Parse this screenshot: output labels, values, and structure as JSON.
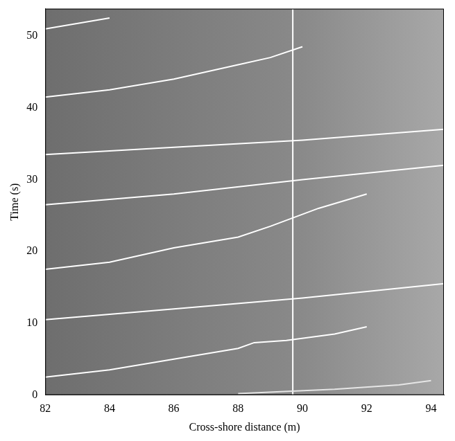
{
  "chart_data": {
    "type": "line",
    "x_label": "Cross-shore distance (m)",
    "y_label": "Time (s)",
    "xlim": [
      82,
      94.4
    ],
    "xticks": [
      82,
      84,
      86,
      88,
      90,
      92,
      94
    ],
    "ylim": [
      0,
      53.8
    ],
    "yticks": [
      0,
      10,
      20,
      30,
      40,
      50
    ],
    "grid": false,
    "marker": "none",
    "line_style": "solid",
    "series": [
      {
        "x": [
          88,
          91,
          93,
          94
        ],
        "values": [
          0.2,
          0.8,
          1.4,
          2.0
        ],
        "color": "#e6e6e6"
      },
      {
        "x": [
          82,
          84,
          86,
          88,
          88.5,
          89.5,
          91,
          92
        ],
        "values": [
          2.5,
          3.5,
          5,
          6.5,
          7.3,
          7.6,
          8.5,
          9.5
        ],
        "color": "#ffffff"
      },
      {
        "x": [
          82,
          86,
          90,
          94.4
        ],
        "values": [
          10.5,
          12,
          13.5,
          15.5
        ],
        "color": "#ffffff"
      },
      {
        "x": [
          82,
          84,
          86,
          88,
          89,
          90.5,
          92
        ],
        "values": [
          17.5,
          18.5,
          20.5,
          22,
          23.5,
          26,
          28
        ],
        "color": "#ffffff"
      },
      {
        "x": [
          82,
          86,
          90,
          94.4
        ],
        "values": [
          26.5,
          28,
          30,
          32
        ],
        "color": "#ffffff"
      },
      {
        "x": [
          82,
          86,
          90,
          94.4
        ],
        "values": [
          33.5,
          34.5,
          35.5,
          37
        ],
        "color": "#ffffff"
      },
      {
        "x": [
          82,
          84,
          86,
          88,
          89,
          90
        ],
        "values": [
          41.5,
          42.5,
          44,
          46,
          47,
          48.5
        ],
        "color": "#ffffff"
      },
      {
        "x": [
          82,
          84
        ],
        "values": [
          51,
          52.5
        ],
        "color": "#ffffff"
      },
      {
        "x": [
          89.7,
          89.7
        ],
        "values": [
          0,
          53.8
        ],
        "color": "#ffffff"
      }
    ]
  }
}
